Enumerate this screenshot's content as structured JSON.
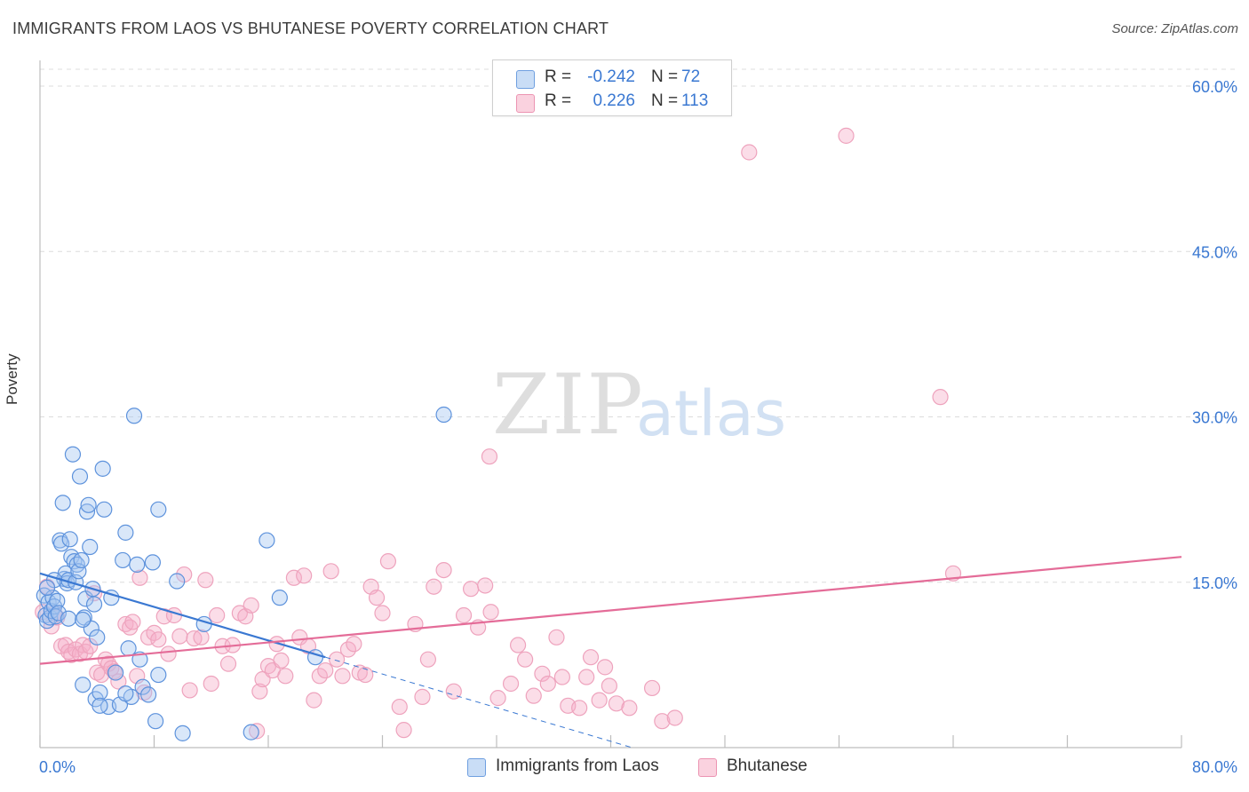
{
  "title": "IMMIGRANTS FROM LAOS VS BHUTANESE POVERTY CORRELATION CHART",
  "source": "Source: ZipAtlas.com",
  "watermark": {
    "zip": "ZIP",
    "atlas": "atlas"
  },
  "legend": {
    "rows": [
      {
        "r_label": "R =",
        "r_value": "-0.242",
        "n_label": "N =",
        "n_value": "72",
        "color": "#a9c8f0"
      },
      {
        "r_label": "R =",
        "r_value": "0.226",
        "n_label": "N =",
        "n_value": "113",
        "color": "#f5b9cc"
      }
    ]
  },
  "bottom_legend": [
    {
      "label": "Immigrants from Laos",
      "color": "#a9c8f0"
    },
    {
      "label": "Bhutanese",
      "color": "#f5b9cc"
    }
  ],
  "colors": {
    "blue": "#3a78d2",
    "pink": "#e46c98",
    "tick": "#3a78d2",
    "grid": "#dcdcdc"
  },
  "chart_data": {
    "type": "scatter",
    "title": "IMMIGRANTS FROM LAOS VS BHUTANESE POVERTY CORRELATION CHART",
    "xlabel": "",
    "ylabel": "Poverty",
    "xlim": [
      0,
      80
    ],
    "ylim": [
      0,
      60
    ],
    "x_tick_labels": [
      "0.0%",
      "80.0%"
    ],
    "y_ticks": [
      15,
      30,
      45,
      60
    ],
    "y_tick_labels": [
      "15.0%",
      "30.0%",
      "45.0%",
      "60.0%"
    ],
    "grid": true,
    "legend_position": "top-center",
    "series": [
      {
        "name": "Immigrants from Laos",
        "color": "#3a78d2",
        "trend": {
          "x": [
            0,
            20
          ],
          "y": [
            15.8,
            8.2
          ],
          "dashed_to": [
            41.5,
            0
          ]
        },
        "points": [
          [
            0.3,
            13.8
          ],
          [
            0.4,
            12.0
          ],
          [
            0.5,
            11.5
          ],
          [
            0.6,
            13.2
          ],
          [
            0.7,
            11.8
          ],
          [
            0.8,
            12.4
          ],
          [
            0.9,
            13.6
          ],
          [
            1.0,
            12.8
          ],
          [
            1.1,
            11.9
          ],
          [
            1.2,
            13.3
          ],
          [
            1.3,
            12.2
          ],
          [
            1.4,
            18.8
          ],
          [
            1.5,
            18.5
          ],
          [
            1.6,
            22.2
          ],
          [
            1.7,
            15.3
          ],
          [
            1.8,
            15.8
          ],
          [
            1.9,
            14.9
          ],
          [
            2.0,
            15.2
          ],
          [
            2.1,
            18.9
          ],
          [
            2.2,
            17.3
          ],
          [
            2.3,
            26.6
          ],
          [
            2.4,
            16.9
          ],
          [
            2.5,
            15.0
          ],
          [
            2.6,
            16.6
          ],
          [
            2.7,
            16.0
          ],
          [
            2.8,
            24.6
          ],
          [
            2.9,
            17.0
          ],
          [
            3.0,
            5.7
          ],
          [
            3.1,
            11.8
          ],
          [
            3.2,
            13.5
          ],
          [
            3.3,
            21.4
          ],
          [
            3.4,
            22.0
          ],
          [
            3.5,
            18.2
          ],
          [
            3.6,
            10.8
          ],
          [
            3.7,
            14.4
          ],
          [
            3.8,
            13.0
          ],
          [
            3.9,
            4.4
          ],
          [
            4.0,
            10.0
          ],
          [
            4.2,
            5.0
          ],
          [
            4.4,
            25.3
          ],
          [
            4.5,
            21.6
          ],
          [
            4.8,
            3.7
          ],
          [
            5.0,
            13.6
          ],
          [
            5.3,
            6.8
          ],
          [
            5.6,
            3.9
          ],
          [
            5.8,
            17.0
          ],
          [
            6.0,
            19.5
          ],
          [
            6.2,
            9.0
          ],
          [
            6.4,
            4.6
          ],
          [
            6.6,
            30.1
          ],
          [
            6.8,
            16.6
          ],
          [
            7.0,
            8.0
          ],
          [
            7.2,
            5.5
          ],
          [
            7.6,
            4.8
          ],
          [
            7.9,
            16.8
          ],
          [
            8.1,
            2.4
          ],
          [
            8.3,
            21.6
          ],
          [
            8.3,
            6.6
          ],
          [
            9.6,
            15.1
          ],
          [
            10.0,
            1.3
          ],
          [
            11.5,
            11.2
          ],
          [
            14.8,
            1.4
          ],
          [
            15.9,
            18.8
          ],
          [
            16.8,
            13.6
          ],
          [
            19.3,
            8.2
          ],
          [
            1.0,
            15.2
          ],
          [
            2.0,
            11.7
          ],
          [
            4.2,
            3.8
          ],
          [
            6.0,
            4.9
          ],
          [
            0.5,
            14.5
          ],
          [
            28.3,
            30.2
          ],
          [
            3.0,
            11.6
          ]
        ]
      },
      {
        "name": "Bhutanese",
        "color": "#e46c98",
        "trend": {
          "x": [
            0,
            80
          ],
          "y": [
            7.6,
            17.3
          ]
        },
        "points": [
          [
            0.2,
            12.3
          ],
          [
            0.5,
            14.6
          ],
          [
            0.8,
            11.0
          ],
          [
            1.0,
            12.2
          ],
          [
            1.2,
            11.8
          ],
          [
            1.5,
            9.2
          ],
          [
            1.8,
            9.3
          ],
          [
            2.0,
            8.7
          ],
          [
            2.2,
            8.4
          ],
          [
            2.5,
            8.9
          ],
          [
            2.8,
            8.5
          ],
          [
            3.0,
            9.3
          ],
          [
            3.2,
            8.7
          ],
          [
            3.5,
            9.2
          ],
          [
            3.8,
            14.0
          ],
          [
            4.0,
            6.8
          ],
          [
            4.3,
            6.6
          ],
          [
            4.6,
            8.0
          ],
          [
            4.8,
            7.6
          ],
          [
            5.0,
            7.2
          ],
          [
            5.2,
            6.9
          ],
          [
            5.5,
            6.0
          ],
          [
            6.0,
            11.2
          ],
          [
            6.3,
            10.9
          ],
          [
            6.5,
            11.4
          ],
          [
            6.8,
            6.5
          ],
          [
            7.0,
            15.4
          ],
          [
            7.3,
            5.0
          ],
          [
            7.6,
            10.0
          ],
          [
            8.0,
            10.4
          ],
          [
            8.3,
            9.8
          ],
          [
            8.7,
            11.9
          ],
          [
            9.0,
            8.5
          ],
          [
            9.4,
            12.0
          ],
          [
            9.8,
            10.1
          ],
          [
            10.1,
            15.7
          ],
          [
            10.5,
            5.2
          ],
          [
            10.8,
            9.9
          ],
          [
            11.3,
            10.0
          ],
          [
            11.6,
            15.2
          ],
          [
            12.0,
            5.8
          ],
          [
            12.4,
            12.0
          ],
          [
            12.8,
            9.2
          ],
          [
            13.2,
            7.6
          ],
          [
            13.5,
            9.3
          ],
          [
            14.0,
            12.2
          ],
          [
            14.4,
            11.9
          ],
          [
            14.8,
            12.9
          ],
          [
            15.2,
            1.5
          ],
          [
            15.4,
            5.1
          ],
          [
            15.6,
            6.2
          ],
          [
            16.0,
            7.4
          ],
          [
            16.3,
            7.0
          ],
          [
            16.6,
            9.4
          ],
          [
            16.9,
            7.9
          ],
          [
            17.2,
            6.5
          ],
          [
            17.8,
            15.4
          ],
          [
            18.2,
            10.0
          ],
          [
            18.5,
            15.6
          ],
          [
            18.8,
            9.2
          ],
          [
            19.2,
            4.3
          ],
          [
            19.6,
            6.5
          ],
          [
            20.0,
            7.0
          ],
          [
            20.4,
            16.0
          ],
          [
            20.8,
            8.0
          ],
          [
            21.2,
            6.5
          ],
          [
            21.6,
            8.9
          ],
          [
            22.0,
            9.4
          ],
          [
            22.4,
            6.8
          ],
          [
            22.8,
            6.6
          ],
          [
            23.2,
            14.6
          ],
          [
            23.6,
            13.6
          ],
          [
            24.0,
            12.2
          ],
          [
            24.4,
            16.9
          ],
          [
            25.2,
            3.7
          ],
          [
            25.5,
            1.6
          ],
          [
            26.3,
            11.2
          ],
          [
            26.8,
            4.6
          ],
          [
            27.2,
            8.0
          ],
          [
            27.6,
            14.6
          ],
          [
            28.3,
            16.1
          ],
          [
            29.0,
            5.1
          ],
          [
            29.7,
            12.0
          ],
          [
            30.2,
            14.4
          ],
          [
            30.7,
            10.9
          ],
          [
            31.2,
            14.7
          ],
          [
            31.6,
            12.3
          ],
          [
            32.1,
            4.5
          ],
          [
            33.0,
            5.8
          ],
          [
            33.5,
            9.3
          ],
          [
            34.0,
            8.0
          ],
          [
            34.6,
            4.7
          ],
          [
            35.2,
            6.7
          ],
          [
            35.6,
            5.8
          ],
          [
            36.2,
            10.0
          ],
          [
            36.6,
            6.4
          ],
          [
            37.0,
            3.8
          ],
          [
            37.8,
            3.6
          ],
          [
            38.3,
            6.4
          ],
          [
            38.6,
            8.2
          ],
          [
            39.2,
            4.3
          ],
          [
            39.6,
            7.3
          ],
          [
            39.9,
            5.6
          ],
          [
            40.4,
            4.0
          ],
          [
            41.3,
            3.6
          ],
          [
            42.9,
            5.4
          ],
          [
            43.6,
            2.4
          ],
          [
            44.5,
            2.7
          ],
          [
            49.7,
            54.0
          ],
          [
            56.5,
            55.5
          ],
          [
            63.1,
            31.8
          ],
          [
            64.0,
            15.8
          ],
          [
            31.5,
            26.4
          ]
        ]
      }
    ]
  }
}
